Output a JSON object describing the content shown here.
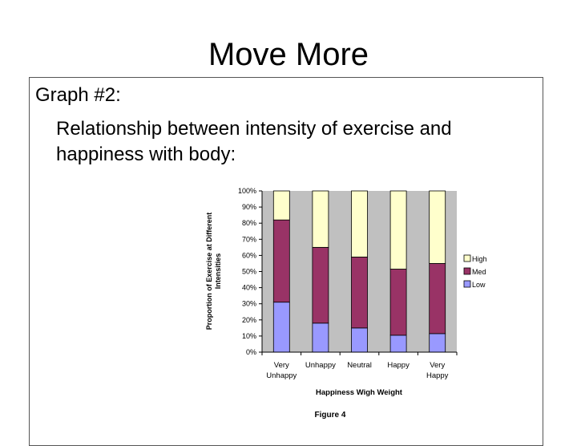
{
  "slide": {
    "title": "Move More",
    "heading": "Graph #2:",
    "subtext": "Relationship between intensity of exercise and happiness with body:"
  },
  "chart_data": {
    "type": "bar",
    "stacked": true,
    "categories": [
      [
        "Very",
        "Unhappy"
      ],
      [
        "Unhappy"
      ],
      [
        "Neutral"
      ],
      [
        "Happy"
      ],
      [
        "Very",
        "Happy"
      ]
    ],
    "series": [
      {
        "name": "Low",
        "color": "#9999ff",
        "values": [
          0.31,
          0.18,
          0.15,
          0.105,
          0.115
        ]
      },
      {
        "name": "Med",
        "color": "#993366",
        "values": [
          0.51,
          0.47,
          0.44,
          0.41,
          0.435
        ]
      },
      {
        "name": "High",
        "color": "#ffffcc",
        "values": [
          0.18,
          0.35,
          0.41,
          0.485,
          0.45
        ]
      }
    ],
    "ylim": [
      0,
      1
    ],
    "yticks": [
      "0%",
      "10%",
      "20%",
      "30%",
      "40%",
      "50%",
      "60%",
      "70%",
      "80%",
      "90%",
      "100%"
    ],
    "ylabel": "Proportion of Exercise at Different Intensities",
    "xlabel": "Happiness Wigh Weight",
    "caption": "Figure 4",
    "legend_order": [
      "High",
      "Med",
      "Low"
    ],
    "plot_background": "#c0c0c0",
    "grid": false
  }
}
